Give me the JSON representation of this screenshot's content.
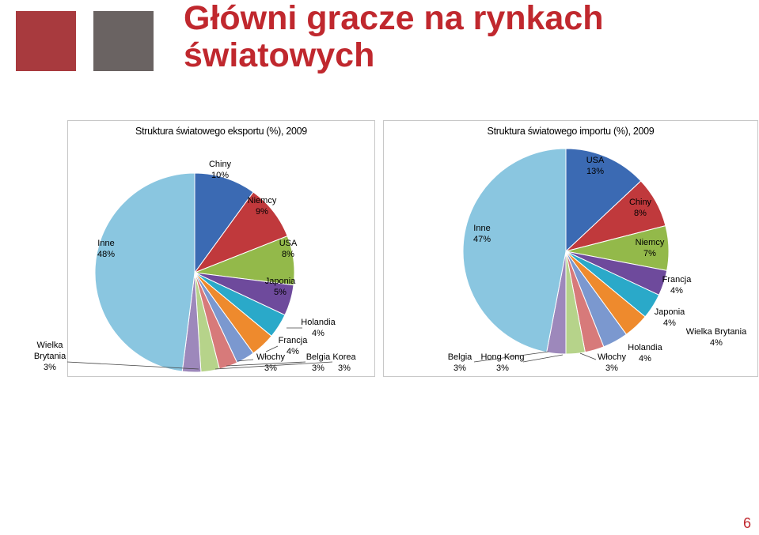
{
  "title": "Główni gracze na rynkach światowych",
  "page_number": "6",
  "colors": {
    "accent_red": "#a83a3e",
    "accent_gray": "#6a6362",
    "title_red": "#c0282e"
  },
  "chart_data": [
    {
      "type": "pie",
      "title": "Struktura światowego eksportu (%), 2009",
      "slices": [
        {
          "label": "Chiny",
          "value": 10,
          "color": "#3b6ab3"
        },
        {
          "label": "Niemcy",
          "value": 9,
          "color": "#c0393c"
        },
        {
          "label": "USA",
          "value": 8,
          "color": "#93b94a"
        },
        {
          "label": "Japonia",
          "value": 5,
          "color": "#6e4a9c"
        },
        {
          "label": "Holandia",
          "value": 4,
          "color": "#2aa9c9"
        },
        {
          "label": "Francja",
          "value": 4,
          "color": "#ee8a2d"
        },
        {
          "label": "Włochy",
          "value": 3,
          "color": "#7b98cf"
        },
        {
          "label": "Belgia",
          "value": 3,
          "color": "#d77a7a"
        },
        {
          "label": "Korea",
          "value": 3,
          "color": "#b6d38a"
        },
        {
          "label": "Wielka Brytania",
          "value": 3,
          "color": "#9d88bb"
        },
        {
          "label": "Inne",
          "value": 48,
          "color": "#8ac6e0"
        }
      ]
    },
    {
      "type": "pie",
      "title": "Struktura światowego importu (%), 2009",
      "slices": [
        {
          "label": "USA",
          "value": 13,
          "color": "#3b6ab3"
        },
        {
          "label": "Chiny",
          "value": 8,
          "color": "#c0393c"
        },
        {
          "label": "Niemcy",
          "value": 7,
          "color": "#93b94a"
        },
        {
          "label": "Francja",
          "value": 4,
          "color": "#6e4a9c"
        },
        {
          "label": "Japonia",
          "value": 4,
          "color": "#2aa9c9"
        },
        {
          "label": "Wielka Brytania",
          "value": 4,
          "color": "#ee8a2d"
        },
        {
          "label": "Holandia",
          "value": 4,
          "color": "#7b98cf"
        },
        {
          "label": "Włochy",
          "value": 3,
          "color": "#d77a7a"
        },
        {
          "label": "Hong Kong",
          "value": 3,
          "color": "#b6d38a"
        },
        {
          "label": "Belgia",
          "value": 3,
          "color": "#9d88bb"
        },
        {
          "label": "Inne",
          "value": 47,
          "color": "#8ac6e0"
        }
      ]
    }
  ]
}
